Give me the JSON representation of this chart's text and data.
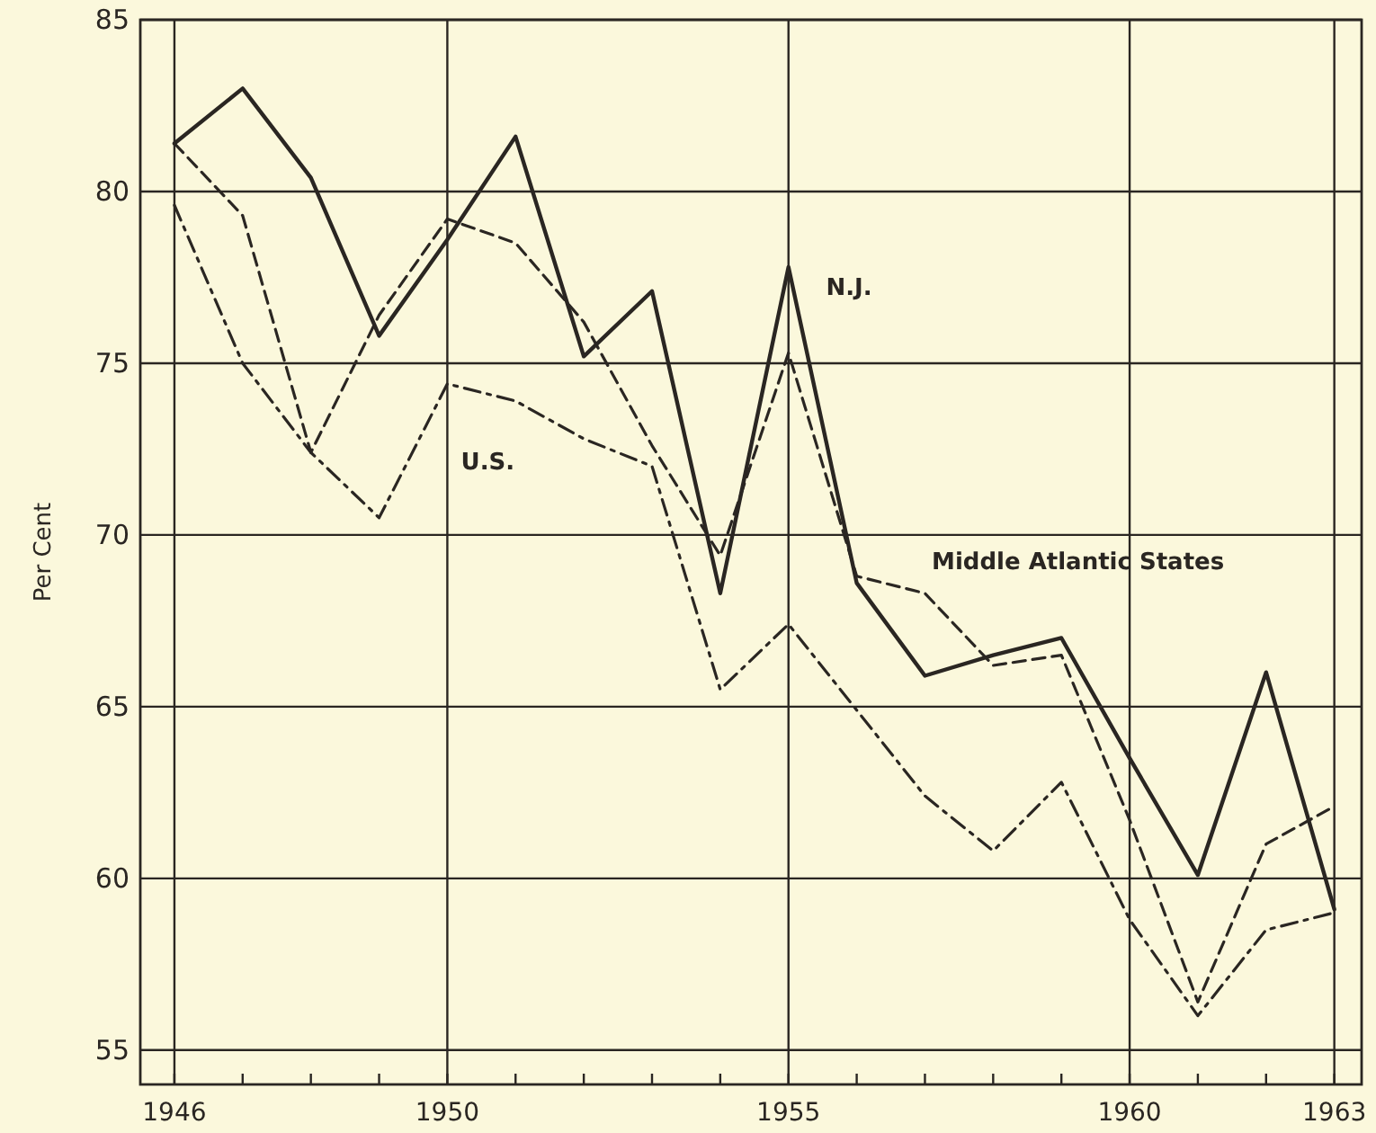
{
  "chart_data": {
    "type": "line",
    "ylabel": "Per Cent",
    "x": [
      1946,
      1947,
      1948,
      1949,
      1950,
      1951,
      1952,
      1953,
      1954,
      1955,
      1956,
      1957,
      1958,
      1959,
      1960,
      1961,
      1962,
      1963
    ],
    "series": [
      {
        "name": "N.J.",
        "color": "#2a2622",
        "line_style": "solid",
        "values": [
          81.4,
          83.0,
          80.4,
          75.8,
          78.6,
          81.6,
          75.2,
          77.1,
          68.3,
          77.8,
          68.6,
          65.9,
          66.5,
          67.0,
          63.5,
          60.1,
          66.0,
          59.1
        ]
      },
      {
        "name": "Middle Atlantic States",
        "color": "#2a2622",
        "line_style": "dashed",
        "values": [
          81.4,
          79.3,
          72.4,
          76.4,
          79.2,
          78.5,
          76.2,
          72.6,
          69.4,
          75.3,
          68.8,
          68.3,
          66.2,
          66.5,
          61.7,
          56.4,
          61.0,
          62.1
        ]
      },
      {
        "name": "U.S.",
        "color": "#2a2622",
        "line_style": "dashdot",
        "values": [
          79.6,
          75.0,
          72.4,
          70.5,
          74.4,
          73.9,
          72.8,
          72.0,
          65.5,
          67.4,
          64.9,
          62.4,
          60.8,
          62.8,
          58.8,
          56.0,
          58.5,
          59.0
        ]
      }
    ],
    "xlim": [
      1945.5,
      1963.4
    ],
    "ylim": [
      54,
      85
    ],
    "xticks": [
      1946,
      {
        "value": 1947,
        "label": null
      },
      {
        "value": 1948,
        "label": null
      },
      {
        "value": 1949,
        "label": null
      },
      1950,
      {
        "value": 1951,
        "label": null
      },
      {
        "value": 1952,
        "label": null
      },
      {
        "value": 1953,
        "label": null
      },
      {
        "value": 1954,
        "label": null
      },
      1955,
      {
        "value": 1956,
        "label": null
      },
      {
        "value": 1957,
        "label": null
      },
      {
        "value": 1958,
        "label": null
      },
      {
        "value": 1959,
        "label": null
      },
      1960,
      {
        "value": 1961,
        "label": null
      },
      {
        "value": 1962,
        "label": null
      },
      1963
    ],
    "yticks": [
      55,
      60,
      65,
      70,
      75,
      80,
      85
    ],
    "grid": true,
    "marker": "none"
  }
}
